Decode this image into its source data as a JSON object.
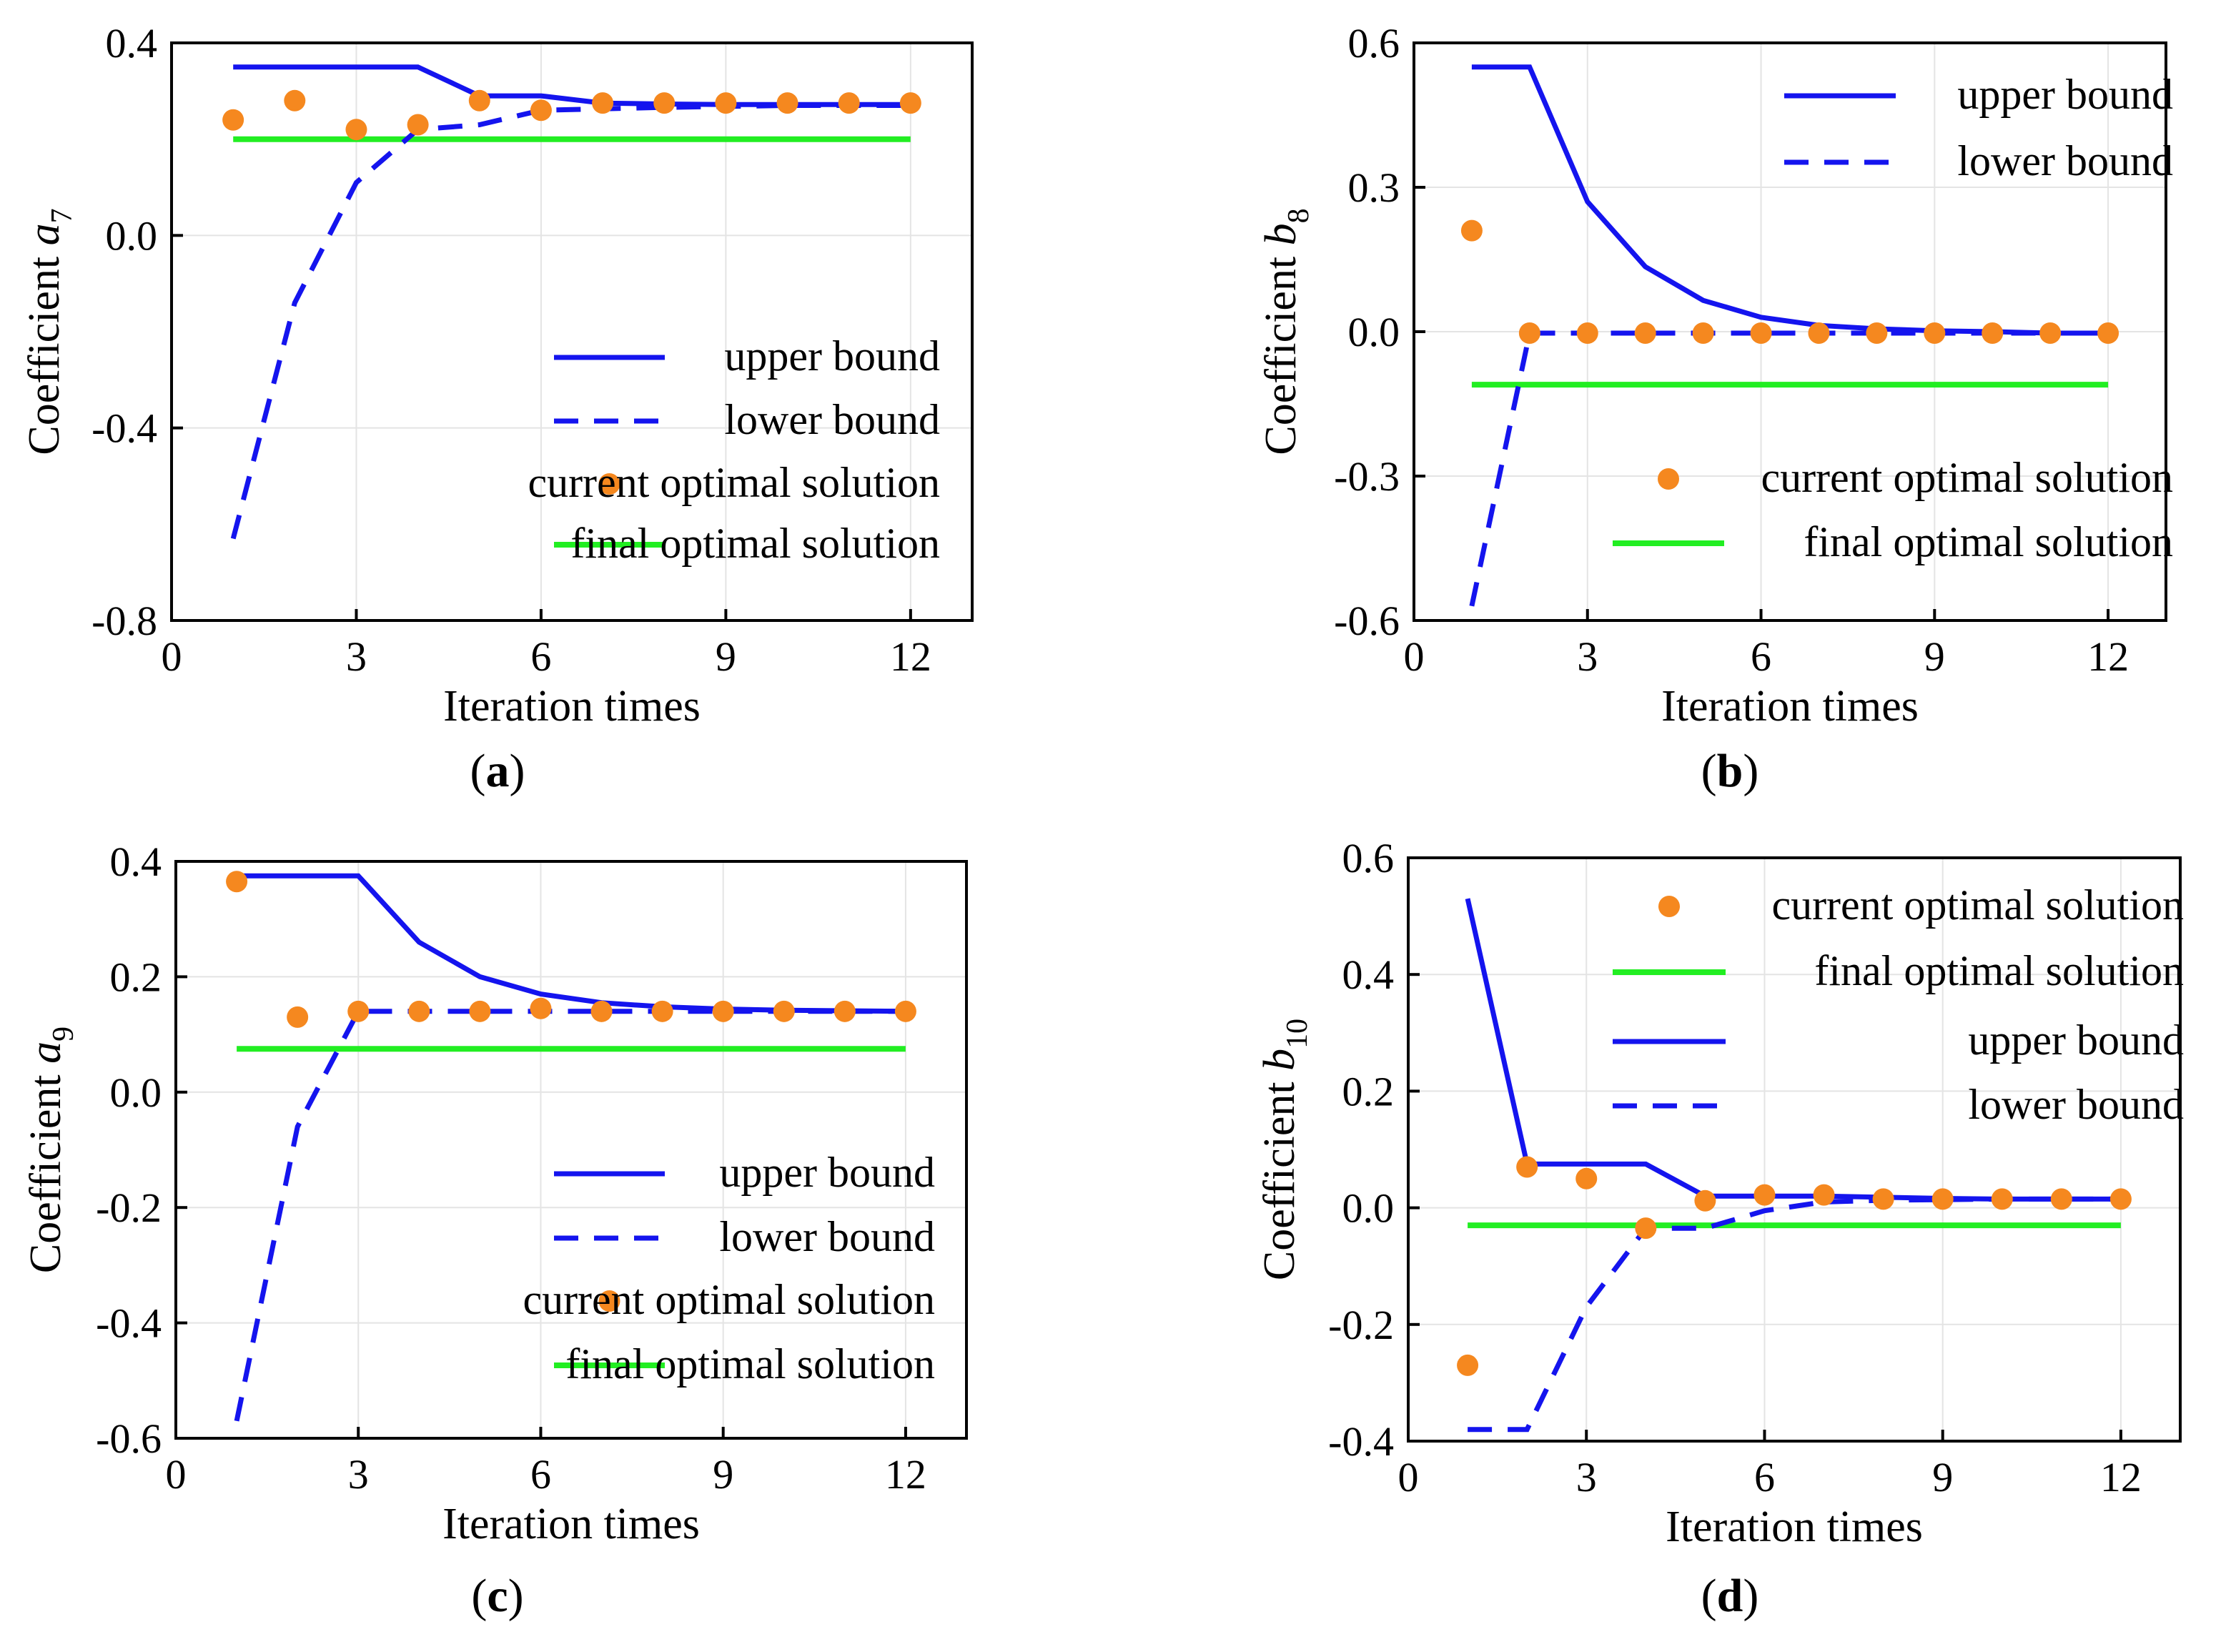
{
  "colors": {
    "upper": "#1414ee",
    "lower": "#1414ee",
    "current": "#f5881f",
    "final": "#22ee22",
    "grid": "#e4e4e4",
    "axis": "#000000"
  },
  "chart_data": [
    {
      "id": "a",
      "type": "line",
      "panel_label": "a",
      "title": "",
      "xlabel": "Iteration times",
      "ylabel_main": "Coefficient ",
      "ylabel_var": "a",
      "ylabel_sub": "7",
      "xlim": [
        0,
        13
      ],
      "ylim": [
        -0.8,
        0.4
      ],
      "xticks": [
        0,
        3,
        6,
        9,
        12
      ],
      "xtick_labels": [
        "0",
        "3",
        "6",
        "9",
        "12"
      ],
      "yticks": [
        0.4,
        0.0,
        -0.4,
        -0.8
      ],
      "ytick_labels": [
        "0.4",
        "0.0",
        "-0.4",
        "-0.8"
      ],
      "grid": true,
      "legend_position": "bottom-right",
      "legend_order": [
        "upper",
        "lower",
        "current",
        "final"
      ],
      "series": {
        "upper": {
          "name": "upper bound",
          "x": [
            1,
            2,
            3,
            4,
            5,
            6,
            7,
            8,
            9,
            10,
            11,
            12
          ],
          "y": [
            0.35,
            0.35,
            0.35,
            0.35,
            0.29,
            0.29,
            0.275,
            0.273,
            0.272,
            0.272,
            0.272,
            0.272
          ]
        },
        "lower": {
          "name": "lower bound",
          "x": [
            1,
            2,
            3,
            4,
            5,
            6,
            7,
            8,
            9,
            10,
            11,
            12
          ],
          "y": [
            -0.63,
            -0.14,
            0.11,
            0.22,
            0.23,
            0.26,
            0.263,
            0.266,
            0.268,
            0.27,
            0.27,
            0.27
          ]
        },
        "current": {
          "name": "current optimal solution",
          "x": [
            1,
            2,
            3,
            4,
            5,
            6,
            7,
            8,
            9,
            10,
            11,
            12
          ],
          "y": [
            0.24,
            0.28,
            0.22,
            0.23,
            0.28,
            0.26,
            0.275,
            0.275,
            0.275,
            0.275,
            0.275,
            0.275
          ]
        },
        "final": {
          "name": "final optimal solution",
          "x": [
            1,
            12
          ],
          "y": [
            0.2,
            0.2
          ]
        }
      }
    },
    {
      "id": "b",
      "type": "line",
      "panel_label": "b",
      "title": "",
      "xlabel": "Iteration times",
      "ylabel_main": "Coefficient ",
      "ylabel_var": "b",
      "ylabel_sub": "8",
      "xlim": [
        0,
        13
      ],
      "ylim": [
        -0.6,
        0.6
      ],
      "xticks": [
        0,
        3,
        6,
        9,
        12
      ],
      "xtick_labels": [
        "0",
        "3",
        "6",
        "9",
        "12"
      ],
      "yticks": [
        0.6,
        0.3,
        0.0,
        -0.3,
        -0.6
      ],
      "ytick_labels": [
        "0.6",
        "0.3",
        "0.0",
        "-0.3",
        "-0.6"
      ],
      "grid": true,
      "legend_position": "split: upper/lower top-right, current/final bottom-right",
      "legend_order": [
        "upper",
        "lower",
        "current",
        "final"
      ],
      "series": {
        "upper": {
          "name": "upper bound",
          "x": [
            1,
            2,
            3,
            4,
            5,
            6,
            7,
            8,
            9,
            10,
            11,
            12
          ],
          "y": [
            0.55,
            0.55,
            0.27,
            0.135,
            0.065,
            0.03,
            0.013,
            0.006,
            0.002,
            0.0,
            -0.003,
            -0.003
          ]
        },
        "lower": {
          "name": "lower bound",
          "x": [
            1,
            2,
            3,
            4,
            5,
            6,
            7,
            8,
            9,
            10,
            11,
            12
          ],
          "y": [
            -0.57,
            -0.003,
            -0.003,
            -0.003,
            -0.003,
            -0.003,
            -0.003,
            -0.003,
            -0.003,
            -0.003,
            -0.003,
            -0.003
          ]
        },
        "current": {
          "name": "current optimal solution",
          "x": [
            1,
            2,
            3,
            4,
            5,
            6,
            7,
            8,
            9,
            10,
            11,
            12
          ],
          "y": [
            0.21,
            -0.003,
            -0.003,
            -0.003,
            -0.003,
            -0.003,
            -0.003,
            -0.003,
            -0.003,
            -0.003,
            -0.003,
            -0.003
          ]
        },
        "final": {
          "name": "final optimal solution",
          "x": [
            1,
            12
          ],
          "y": [
            -0.11,
            -0.11
          ]
        }
      }
    },
    {
      "id": "c",
      "type": "line",
      "panel_label": "c",
      "title": "",
      "xlabel": "Iteration times",
      "ylabel_main": "Coefficient ",
      "ylabel_var": "a",
      "ylabel_sub": "9",
      "xlim": [
        0,
        13
      ],
      "ylim": [
        -0.6,
        0.4
      ],
      "xticks": [
        0,
        3,
        6,
        9,
        12
      ],
      "xtick_labels": [
        "0",
        "3",
        "6",
        "9",
        "12"
      ],
      "yticks": [
        0.4,
        0.2,
        0.0,
        -0.2,
        -0.4,
        -0.6
      ],
      "ytick_labels": [
        "0.4",
        "0.2",
        "0.0",
        "-0.2",
        "-0.4",
        "-0.6"
      ],
      "grid": true,
      "legend_position": "bottom-right",
      "legend_order": [
        "upper",
        "lower",
        "current",
        "final"
      ],
      "series": {
        "upper": {
          "name": "upper bound",
          "x": [
            1,
            2,
            3,
            4,
            5,
            6,
            7,
            8,
            9,
            10,
            11,
            12
          ],
          "y": [
            0.375,
            0.375,
            0.375,
            0.26,
            0.2,
            0.17,
            0.155,
            0.148,
            0.144,
            0.142,
            0.141,
            0.14
          ]
        },
        "lower": {
          "name": "lower bound",
          "x": [
            1,
            2,
            3,
            4,
            5,
            6,
            7,
            8,
            9,
            10,
            11,
            12
          ],
          "y": [
            -0.57,
            -0.06,
            0.14,
            0.14,
            0.14,
            0.14,
            0.14,
            0.14,
            0.14,
            0.14,
            0.14,
            0.14
          ]
        },
        "current": {
          "name": "current optimal solution",
          "x": [
            1,
            2,
            3,
            4,
            5,
            6,
            7,
            8,
            9,
            10,
            11,
            12
          ],
          "y": [
            0.365,
            0.13,
            0.14,
            0.14,
            0.14,
            0.145,
            0.14,
            0.14,
            0.14,
            0.14,
            0.14,
            0.14
          ]
        },
        "final": {
          "name": "final optimal solution",
          "x": [
            1,
            12
          ],
          "y": [
            0.075,
            0.075
          ]
        }
      }
    },
    {
      "id": "d",
      "type": "line",
      "panel_label": "d",
      "title": "",
      "xlabel": "Iteration times",
      "ylabel_main": "Coefficient ",
      "ylabel_var": "b",
      "ylabel_sub": "10",
      "xlim": [
        0,
        13
      ],
      "ylim": [
        -0.4,
        0.6
      ],
      "xticks": [
        0,
        3,
        6,
        9,
        12
      ],
      "xtick_labels": [
        "0",
        "3",
        "6",
        "9",
        "12"
      ],
      "yticks": [
        0.6,
        0.4,
        0.2,
        0.0,
        -0.2,
        -0.4
      ],
      "ytick_labels": [
        "0.6",
        "0.4",
        "0.2",
        "0.0",
        "-0.2",
        "-0.4"
      ],
      "grid": true,
      "legend_position": "top-right",
      "legend_order": [
        "current",
        "final",
        "upper",
        "lower"
      ],
      "series": {
        "upper": {
          "name": "upper bound",
          "x": [
            1,
            2,
            3,
            4,
            5,
            6,
            7,
            8,
            9,
            10,
            11,
            12
          ],
          "y": [
            0.53,
            0.075,
            0.075,
            0.075,
            0.02,
            0.02,
            0.02,
            0.018,
            0.016,
            0.015,
            0.015,
            0.015
          ]
        },
        "lower": {
          "name": "lower bound",
          "x": [
            1,
            2,
            3,
            4,
            5,
            6,
            7,
            8,
            9,
            10,
            11,
            12
          ],
          "y": [
            -0.38,
            -0.38,
            -0.17,
            -0.035,
            -0.035,
            -0.005,
            0.01,
            0.013,
            0.014,
            0.015,
            0.015,
            0.015
          ]
        },
        "current": {
          "name": "current optimal solution",
          "x": [
            1,
            2,
            3,
            4,
            5,
            6,
            7,
            8,
            9,
            10,
            11,
            12
          ],
          "y": [
            -0.27,
            0.07,
            0.05,
            -0.035,
            0.012,
            0.022,
            0.022,
            0.015,
            0.015,
            0.015,
            0.015,
            0.015
          ]
        },
        "final": {
          "name": "final optimal solution",
          "x": [
            1,
            12
          ],
          "y": [
            -0.03,
            -0.03
          ]
        }
      }
    }
  ]
}
